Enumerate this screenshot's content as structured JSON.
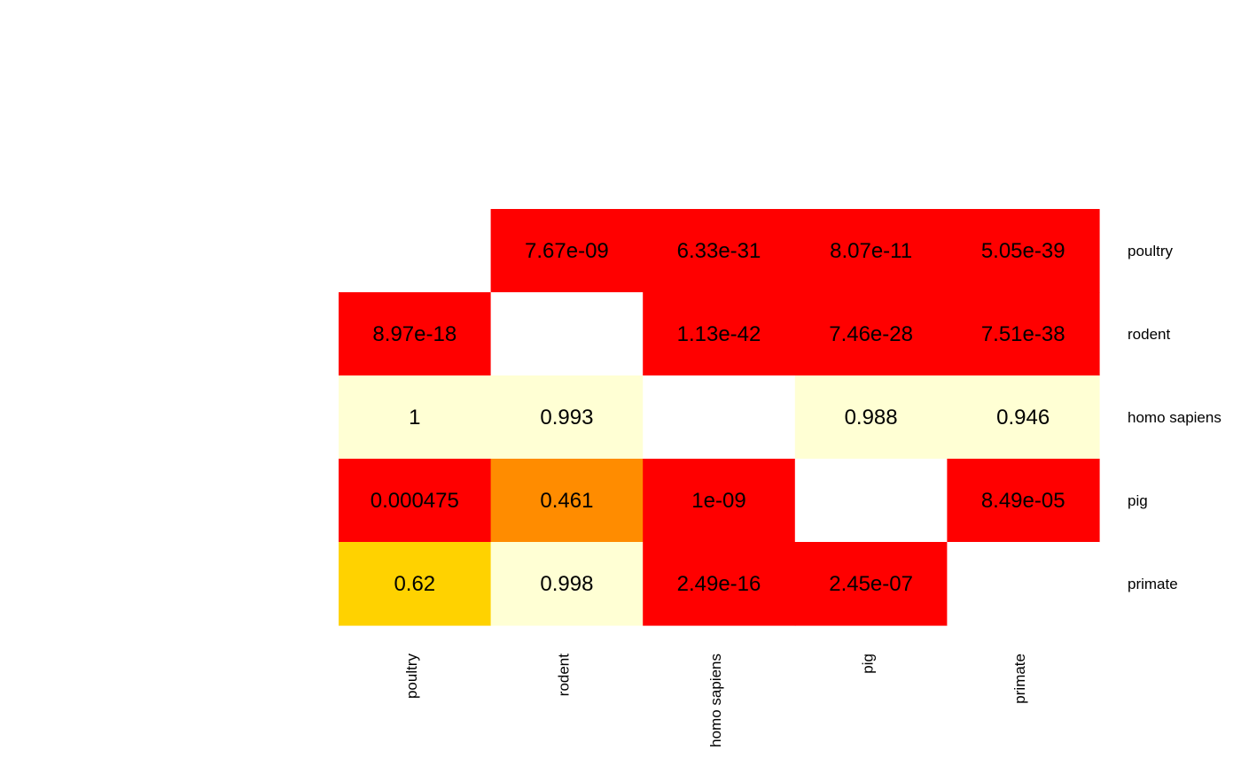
{
  "chart_data": {
    "type": "heatmap",
    "rows": [
      "poultry",
      "rodent",
      "homo sapiens",
      "pig",
      "primate"
    ],
    "columns": [
      "poultry",
      "rodent",
      "homo sapiens",
      "pig",
      "primate"
    ],
    "labels": [
      [
        "",
        "7.67e-09",
        "6.33e-31",
        "8.07e-11",
        "5.05e-39"
      ],
      [
        "8.97e-18",
        "",
        "1.13e-42",
        "7.46e-28",
        "7.51e-38"
      ],
      [
        "1",
        "0.993",
        "",
        "0.988",
        "0.946"
      ],
      [
        "0.000475",
        "0.461",
        "1e-09",
        "",
        "8.49e-05"
      ],
      [
        "0.62",
        "0.998",
        "2.49e-16",
        "2.45e-07",
        ""
      ]
    ],
    "values": [
      [
        null,
        7.67e-09,
        6.33e-31,
        8.07e-11,
        5.05e-39
      ],
      [
        8.97e-18,
        null,
        1.13e-42,
        7.46e-28,
        7.51e-38
      ],
      [
        1,
        0.993,
        null,
        0.988,
        0.946
      ],
      [
        0.000475,
        0.461,
        1e-09,
        null,
        8.49e-05
      ],
      [
        0.62,
        0.998,
        2.49e-16,
        2.45e-07,
        null
      ]
    ],
    "colors": [
      [
        null,
        "#FF0000",
        "#FF0000",
        "#FF0000",
        "#FF0000"
      ],
      [
        "#FF0000",
        null,
        "#FF0000",
        "#FF0000",
        "#FF0000"
      ],
      [
        "#FFFFD4",
        "#FFFFD4",
        null,
        "#FFFFD4",
        "#FFFFD4"
      ],
      [
        "#FF0000",
        "#FF8C00",
        "#FF0000",
        null,
        "#FF0000"
      ],
      [
        "#FFD200",
        "#FFFFD4",
        "#FF0000",
        "#FF0000",
        null
      ]
    ],
    "diagonal_color": "#FFFFFF"
  }
}
